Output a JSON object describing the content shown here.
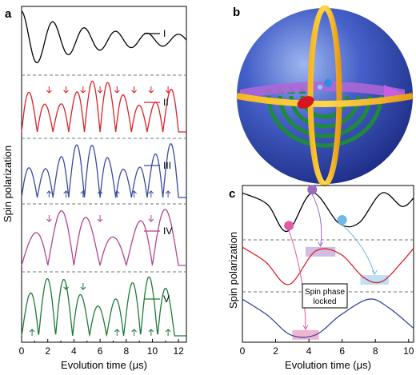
{
  "panels": {
    "a": {
      "letter": "a"
    },
    "b": {
      "letter": "b"
    },
    "c": {
      "letter": "c"
    }
  },
  "chart_data": [
    {
      "type": "line",
      "panel": "a",
      "xlabel": "Evolution time (μs)",
      "ylabel": "Spin polarization",
      "xlim": [
        0,
        12.6
      ],
      "xticks": [
        0,
        2,
        4,
        6,
        8,
        10,
        12
      ],
      "series": [
        {
          "name": "I",
          "color": "#000000",
          "model": "damped",
          "x_min": [
            1.2,
            3.6,
            6.0,
            8.4,
            10.8
          ],
          "x_max": [
            0.0,
            2.4,
            4.8,
            7.2,
            9.6,
            12.0
          ]
        },
        {
          "name": "II",
          "color": "#d9232a",
          "model": "cusps",
          "x_cusps": [
            0.0,
            1.2,
            2.4,
            3.6,
            4.8,
            6.0,
            7.2,
            8.4,
            9.6,
            10.8,
            12.0
          ],
          "arrows_down_x": [
            2.1,
            3.4,
            4.7,
            6.0,
            7.3,
            8.6,
            9.9,
            11.2
          ]
        },
        {
          "name": "III",
          "color": "#3a4aa0",
          "model": "cusps",
          "x_cusps": [
            0.0,
            1.2,
            2.4,
            3.6,
            4.8,
            6.0,
            7.2,
            8.4,
            9.6,
            10.8,
            12.0
          ],
          "arrows_up_x": [
            2.1,
            3.4,
            4.7,
            6.0,
            7.3,
            8.6,
            9.9,
            11.2
          ]
        },
        {
          "name": "IV",
          "color": "#b0458f",
          "model": "cusps",
          "x_cusps": [
            0.0,
            2.0,
            4.0,
            6.0,
            8.0,
            10.0,
            12.0
          ],
          "arrows_down_x": [
            2.1,
            6.0,
            9.9
          ]
        },
        {
          "name": "V",
          "color": "#1f7a3a",
          "model": "cusps",
          "x_cusps": [
            0.0,
            1.3,
            2.6,
            3.9,
            5.2,
            6.5,
            7.8,
            9.1,
            10.4,
            11.7
          ],
          "arrows_down_x": [
            3.4,
            4.7
          ],
          "arrows_up_x": [
            0.8,
            7.3,
            8.6,
            9.9,
            11.2
          ]
        }
      ]
    },
    {
      "type": "line",
      "panel": "c",
      "xlabel": "Evolution time (μs)",
      "ylabel": "Spin polarization",
      "xlim": [
        0,
        10.3
      ],
      "xticks": [
        0,
        2,
        4,
        6,
        8,
        10
      ],
      "series": [
        {
          "color": "#000000",
          "points": [
            [
              0,
              0.95
            ],
            [
              1.5,
              0.4
            ],
            [
              2.7,
              -0.9
            ],
            [
              4.2,
              0.95
            ],
            [
              5.8,
              -0.5
            ],
            [
              7.0,
              -0.5
            ],
            [
              8.4,
              0.95
            ],
            [
              9.6,
              0.3
            ],
            [
              10.3,
              0.7
            ]
          ]
        },
        {
          "color": "#d9232a",
          "points": [
            [
              0,
              0.95
            ],
            [
              1.4,
              0.2
            ],
            [
              2.8,
              -0.95
            ],
            [
              4.4,
              0.75
            ],
            [
              5.9,
              0.6
            ],
            [
              7.3,
              -0.6
            ],
            [
              8.4,
              -0.8
            ],
            [
              9.6,
              0.2
            ],
            [
              10.3,
              0.9
            ]
          ]
        },
        {
          "color": "#3a4aa0",
          "points": [
            [
              0,
              0.95
            ],
            [
              1.5,
              0.1
            ],
            [
              2.9,
              -0.95
            ],
            [
              4.4,
              -0.95
            ],
            [
              5.9,
              0.1
            ],
            [
              7.6,
              0.95
            ],
            [
              8.8,
              0.5
            ],
            [
              10.3,
              -0.6
            ]
          ]
        }
      ],
      "annotations": [
        {
          "text": "Spin phase locked"
        }
      ],
      "markers": [
        {
          "color": "#e05ca0",
          "x": 2.8,
          "curve": 0
        },
        {
          "color": "#9a6bc0",
          "x": 4.2,
          "curve": 0
        },
        {
          "color": "#6fb8e8",
          "x": 6.0,
          "curve": 0
        }
      ],
      "bands": [
        {
          "color": "#e05ca0",
          "x_range": [
            3.0,
            4.6
          ],
          "curve": 2
        },
        {
          "color": "#9a6bc0",
          "x_range": [
            3.8,
            5.6
          ],
          "curve": 1
        },
        {
          "color": "#6fb8e8",
          "x_range": [
            7.1,
            8.8
          ],
          "curve": 1
        }
      ]
    }
  ]
}
